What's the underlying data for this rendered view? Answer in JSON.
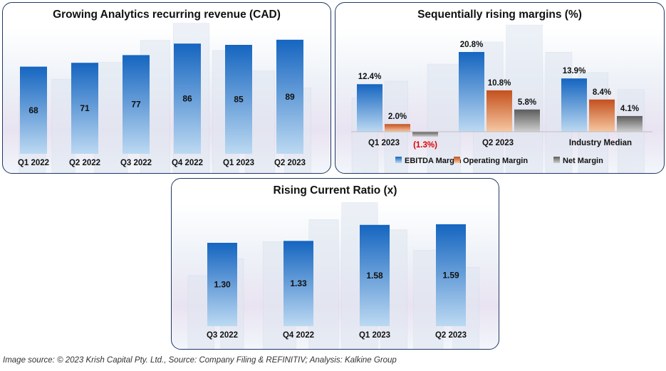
{
  "colors": {
    "ebitda_top": "#1565c0",
    "ebitda_bottom": "#bcd9f2",
    "operating_top": "#c4501d",
    "operating_bottom": "#f6c8a2",
    "net_top": "#5c5c5c",
    "net_bottom": "#cfcfcf",
    "negative_label": "#e00000",
    "border": "#1f3864"
  },
  "chart_data": [
    {
      "type": "bar",
      "title": "Growing Analytics recurring revenue (CAD)",
      "categories": [
        "Q1 2022",
        "Q2 2022",
        "Q3 2022",
        "Q4 2022",
        "Q1 2023",
        "Q2 2023"
      ],
      "values": [
        68,
        71,
        77,
        86,
        85,
        89
      ],
      "labels": [
        "68",
        "71",
        "77",
        "86",
        "85",
        "89"
      ],
      "ylim": [
        0,
        100
      ],
      "grid": false,
      "legend": "none"
    },
    {
      "type": "bar",
      "title": "Sequentially rising margins (%)",
      "categories": [
        "Q1 2023",
        "Q2 2023",
        "Industry Median"
      ],
      "series": [
        {
          "name": "EBITDA Margin",
          "values": [
            12.4,
            20.8,
            13.9
          ],
          "labels": [
            "12.4%",
            "20.8%",
            "13.9%"
          ]
        },
        {
          "name": "Operating Margin",
          "values": [
            2.0,
            10.8,
            8.4
          ],
          "labels": [
            "2.0%",
            "10.8%",
            "8.4%"
          ]
        },
        {
          "name": "Net Margin",
          "values": [
            -1.3,
            5.8,
            4.1
          ],
          "labels": [
            "(1.3%)",
            "5.8%",
            "4.1%"
          ]
        }
      ],
      "ylim": [
        -2,
        22
      ],
      "grid": false,
      "legend": "bottom"
    },
    {
      "type": "bar",
      "title": "Rising Current Ratio (x)",
      "categories": [
        "Q3 2022",
        "Q4 2022",
        "Q1 2023",
        "Q2 2023"
      ],
      "values": [
        1.3,
        1.33,
        1.58,
        1.59
      ],
      "labels": [
        "1.30",
        "1.33",
        "1.58",
        "1.59"
      ],
      "ylim": [
        0,
        1.8
      ],
      "grid": false,
      "legend": "none"
    }
  ],
  "source_note": "Image source: © 2023 Krish Capital Pty. Ltd., Source: Company Filing & REFINITIV; Analysis: Kalkine Group"
}
